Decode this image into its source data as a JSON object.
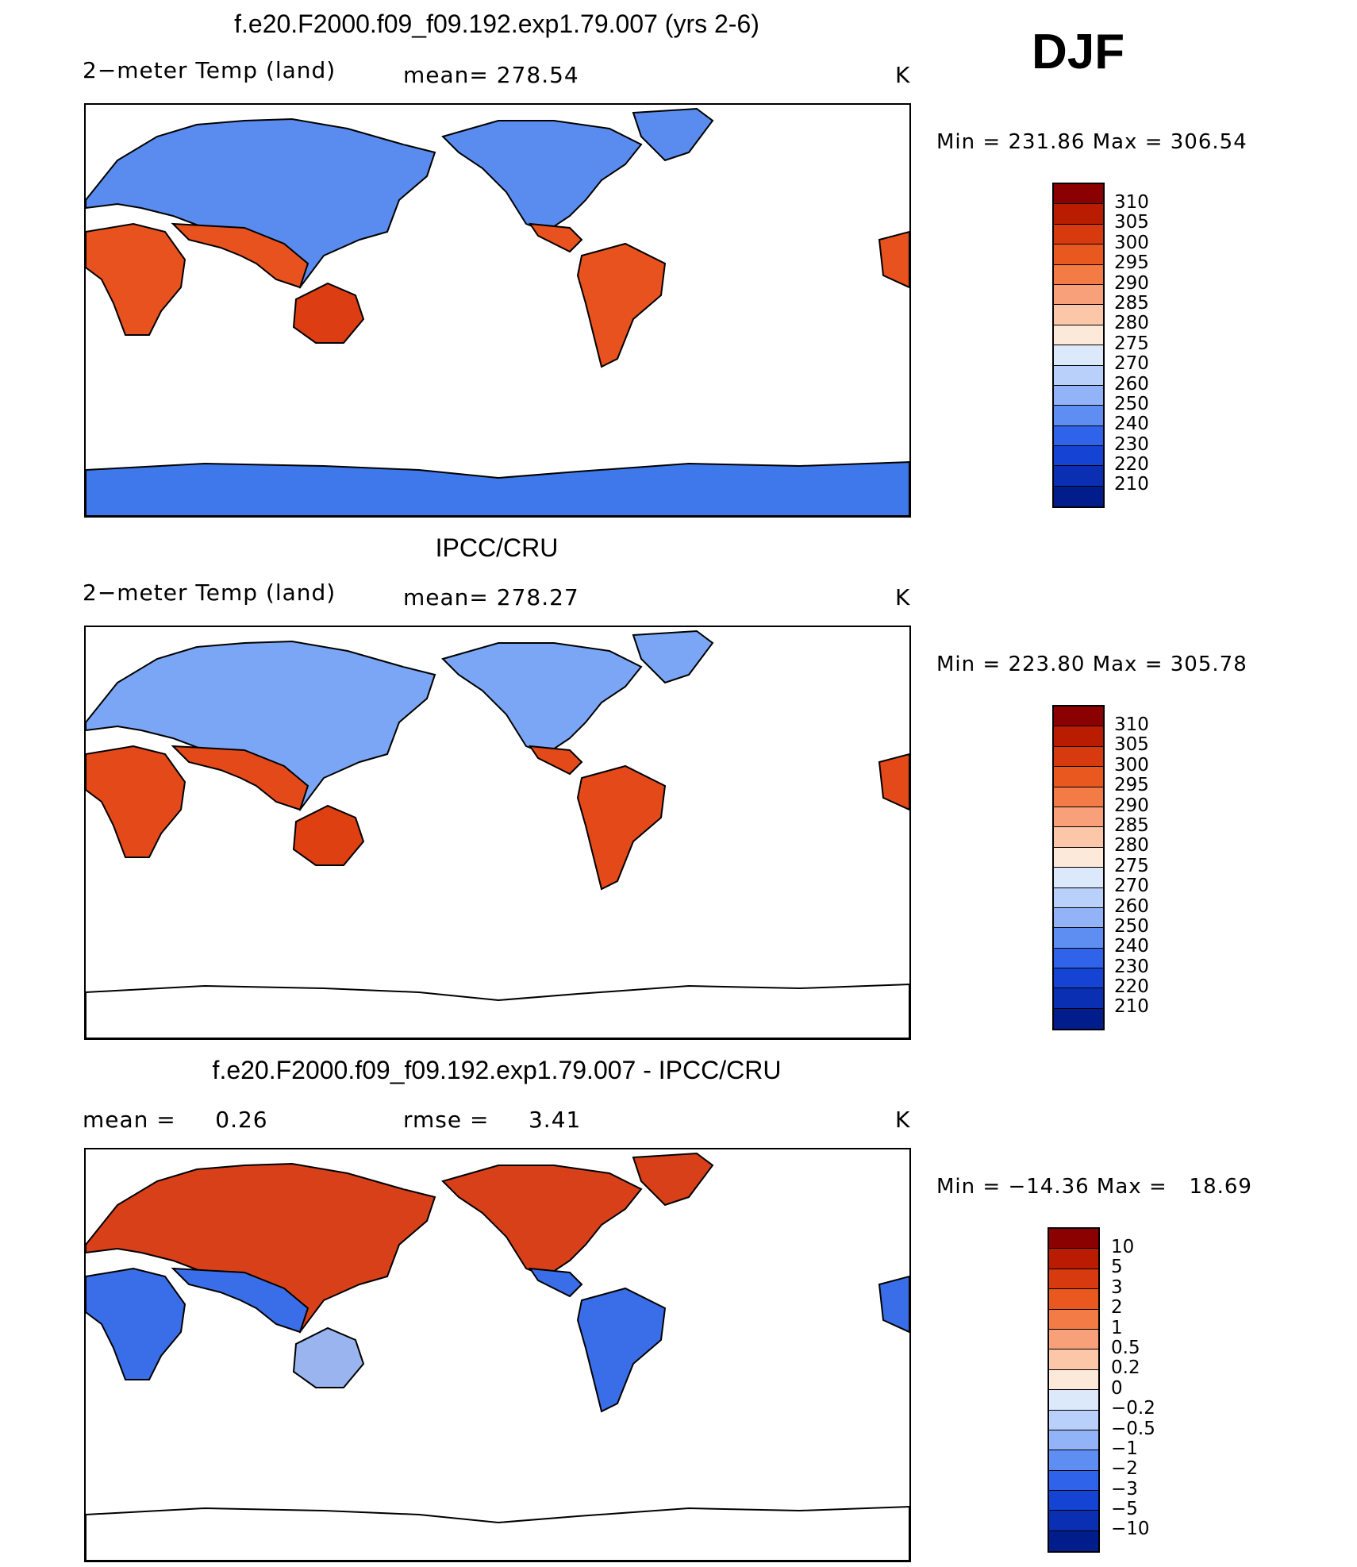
{
  "season": "DJF",
  "panels": [
    {
      "title": "f.e20.F2000.f09_f09.192.exp1.79.007 (yrs 2-6)",
      "left_label": "2−meter Temp (land)",
      "center_label": "mean= 278.54",
      "units": "K",
      "min_max": "Min = 231.86 Max = 306.54",
      "colorbar_levels": [
        "310",
        "305",
        "300",
        "295",
        "290",
        "285",
        "280",
        "275",
        "270",
        "260",
        "250",
        "240",
        "230",
        "220",
        "210"
      ],
      "land_fill": {
        "north": "#5a8cf0",
        "south": "#e8521f",
        "antarctica": "#3f78ea",
        "australia": "#dc3d12"
      }
    },
    {
      "title": "IPCC/CRU",
      "left_label": "2−meter Temp (land)",
      "center_label": "mean= 278.27",
      "units": "K",
      "min_max": "Min = 223.80 Max = 305.78",
      "colorbar_levels": [
        "310",
        "305",
        "300",
        "295",
        "290",
        "285",
        "280",
        "275",
        "270",
        "260",
        "250",
        "240",
        "230",
        "220",
        "210"
      ],
      "land_fill": {
        "north": "#7aa6f5",
        "south": "#e4491a",
        "antarctica": "none",
        "australia": "#de4012"
      }
    },
    {
      "title": "f.e20.F2000.f09_f09.192.exp1.79.007 - IPCC/CRU",
      "left_label": "mean =     0.26",
      "center_label": "rmse =     3.41",
      "units": "K",
      "min_max": "Min = −14.36 Max =   18.69",
      "colorbar_levels": [
        "10",
        "5",
        "3",
        "2",
        "1",
        "0.5",
        "0.2",
        "0",
        "−0.2",
        "−0.5",
        "−1",
        "−2",
        "−3",
        "−5",
        "−10"
      ],
      "land_fill": {
        "north": "#d8401a",
        "south": "#3a6ee8",
        "antarctica": "none",
        "australia": "#9ab4f0"
      }
    }
  ],
  "colorbar_colors": [
    "#8b0000",
    "#b91c00",
    "#d63a0e",
    "#e9581f",
    "#f37b45",
    "#f7a07a",
    "#fbc7a8",
    "#fde9da",
    "#dce9fb",
    "#b9d1fa",
    "#92b3f7",
    "#5f8ef2",
    "#2f64ea",
    "#1544d4",
    "#0a2fb2",
    "#001d8c"
  ]
}
